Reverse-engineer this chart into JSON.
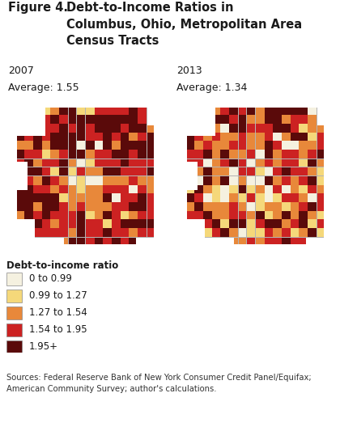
{
  "title_label": "Figure 4.",
  "title_text": "Debt-to-Income Ratios in\nColumbus, Ohio, Metropolitan Area\nCensus Tracts",
  "year_left": "2007",
  "avg_left": "Average: 1.55",
  "year_right": "2013",
  "avg_right": "Average: 1.34",
  "legend_title": "Debt-to-income ratio",
  "legend_items": [
    {
      "label": "0 to 0.99",
      "color": "#f5f1e0"
    },
    {
      "label": "0.99 to 1.27",
      "color": "#f5d87a"
    },
    {
      "label": "1.27 to 1.54",
      "color": "#e8883a"
    },
    {
      "label": "1.54 to 1.95",
      "color": "#cc2222"
    },
    {
      "label": "1.95+",
      "color": "#5a0a0a"
    }
  ],
  "source_text": "Sources: Federal Reserve Bank of New York Consumer Credit Panel/Equifax;\nAmerican Community Survey; author's calculations.",
  "bg_color": "#ffffff"
}
